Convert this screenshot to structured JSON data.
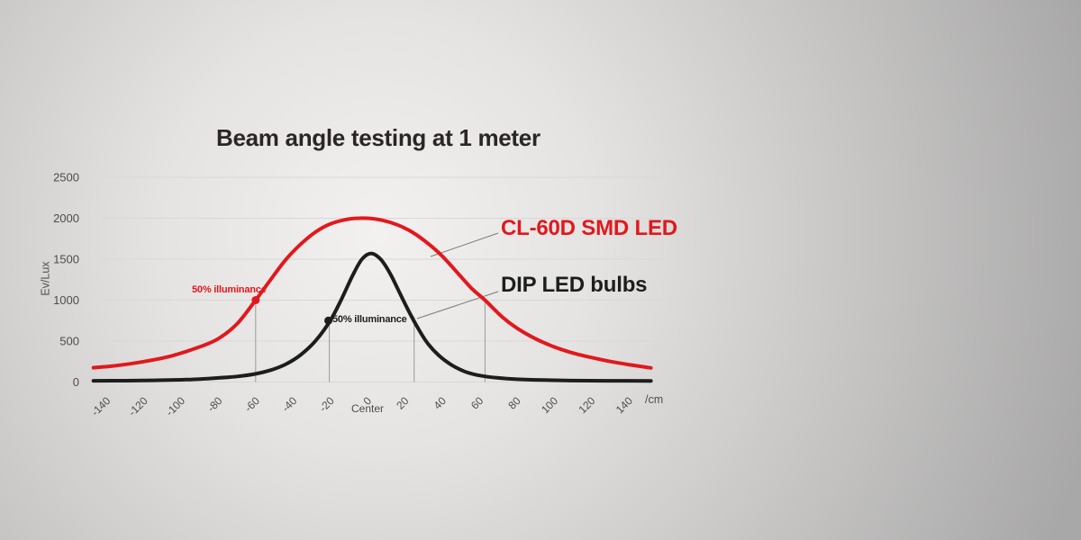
{
  "title": "Beam angle testing at 1 meter",
  "colors": {
    "accent_red": "#e2181d",
    "ink_black": "#1d1d1b",
    "grid_line": "#d9d8d6",
    "marker_line": "#9b9b9b",
    "leader_line": "#7a7a7a",
    "tick_text": "#4f4c4a"
  },
  "chart_data": {
    "type": "line",
    "title": "Beam angle testing at 1 meter",
    "ylabel": "Ev/Lux",
    "xlabel": "",
    "x_unit_label": "/cm",
    "x_center_label": "Center",
    "x_ticks": [
      -140,
      -120,
      -100,
      -80,
      -60,
      -40,
      -20,
      0,
      20,
      40,
      60,
      80,
      100,
      120,
      140
    ],
    "y_ticks": [
      0,
      500,
      1000,
      1500,
      2000,
      2500
    ],
    "xlim": [
      -150,
      155
    ],
    "ylim": [
      0,
      2500
    ],
    "grid": "horizontal",
    "legend_position": "labels-right-of-curves-with-leader-lines",
    "series": [
      {
        "name": "CL-60D SMD LED",
        "color": "#e2181d",
        "peak_lux": 2000,
        "half_power_x_cm": [
          -60,
          63
        ],
        "marker": {
          "x": -60,
          "y": 1000,
          "label": "50% illuminance"
        },
        "points": [
          [
            -147,
            175
          ],
          [
            -135,
            200
          ],
          [
            -120,
            250
          ],
          [
            -105,
            320
          ],
          [
            -90,
            430
          ],
          [
            -80,
            530
          ],
          [
            -70,
            710
          ],
          [
            -60,
            1000
          ],
          [
            -52,
            1250
          ],
          [
            -44,
            1490
          ],
          [
            -36,
            1680
          ],
          [
            -28,
            1830
          ],
          [
            -20,
            1930
          ],
          [
            -10,
            1990
          ],
          [
            0,
            2000
          ],
          [
            8,
            1975
          ],
          [
            16,
            1920
          ],
          [
            24,
            1830
          ],
          [
            32,
            1700
          ],
          [
            40,
            1540
          ],
          [
            48,
            1340
          ],
          [
            56,
            1140
          ],
          [
            63,
            1000
          ],
          [
            72,
            800
          ],
          [
            80,
            660
          ],
          [
            90,
            530
          ],
          [
            100,
            430
          ],
          [
            110,
            355
          ],
          [
            120,
            300
          ],
          [
            130,
            252
          ],
          [
            140,
            213
          ],
          [
            152,
            172
          ]
        ]
      },
      {
        "name": "DIP LED bulbs",
        "color": "#1d1d1b",
        "peak_lux": 1570,
        "half_power_x_cm": [
          -20,
          25
        ],
        "marker": {
          "x": -21,
          "y": 750,
          "label": "50% illuminance"
        },
        "points": [
          [
            -147,
            15
          ],
          [
            -130,
            17
          ],
          [
            -115,
            21
          ],
          [
            -100,
            28
          ],
          [
            -90,
            36
          ],
          [
            -80,
            50
          ],
          [
            -70,
            68
          ],
          [
            -60,
            100
          ],
          [
            -52,
            145
          ],
          [
            -44,
            215
          ],
          [
            -36,
            330
          ],
          [
            -28,
            500
          ],
          [
            -20,
            750
          ],
          [
            -14,
            1010
          ],
          [
            -8,
            1300
          ],
          [
            -3,
            1500
          ],
          [
            2,
            1570
          ],
          [
            7,
            1500
          ],
          [
            12,
            1330
          ],
          [
            17,
            1100
          ],
          [
            22,
            870
          ],
          [
            27,
            660
          ],
          [
            32,
            480
          ],
          [
            38,
            330
          ],
          [
            45,
            210
          ],
          [
            52,
            130
          ],
          [
            60,
            80
          ],
          [
            70,
            50
          ],
          [
            80,
            34
          ],
          [
            95,
            24
          ],
          [
            110,
            18
          ],
          [
            130,
            15
          ],
          [
            152,
            14
          ]
        ]
      }
    ],
    "vertical_marker_lines": [
      {
        "x": -60,
        "top": 1000
      },
      {
        "x": -20.5,
        "top": 742
      },
      {
        "x": 25,
        "top": 797
      },
      {
        "x": 63,
        "top": 1000
      }
    ]
  }
}
